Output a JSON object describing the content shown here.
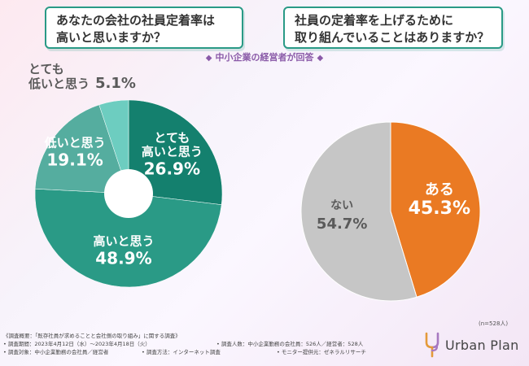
{
  "questions": {
    "left": [
      "あなたの会社の社員定着率は",
      "高いと思いますか？"
    ],
    "right": [
      "社員の定着率を上げるために",
      "取り組んでいることはありますか？"
    ]
  },
  "subtitle": "中小企業の経営者が回答",
  "subtitle_diamond": "◆",
  "sample_note": "(n=528人)",
  "chart_data": [
    {
      "type": "pie",
      "style": "donut",
      "title": "あなたの会社の社員定着率は高いと思いますか？",
      "unit": "%",
      "slices": [
        {
          "label_lines": [
            "とても",
            "高いと思う"
          ],
          "value": 26.9,
          "value_text": "26.9%",
          "color": "#14806e",
          "label_placement": "inside"
        },
        {
          "label_lines": [
            "高いと思う"
          ],
          "value": 48.9,
          "value_text": "48.9%",
          "color": "#2a9a86",
          "label_placement": "inside"
        },
        {
          "label_lines": [
            "低いと思う"
          ],
          "value": 19.1,
          "value_text": "19.1%",
          "color": "#55ad9f",
          "label_placement": "inside"
        },
        {
          "label_lines": [
            "とても",
            "低いと思う"
          ],
          "value": 5.1,
          "value_text": "5.1%",
          "color": "#6dcdc0",
          "label_placement": "outside"
        }
      ]
    },
    {
      "type": "pie",
      "title": "社員の定着率を上げるために取り組んでいることはありますか？",
      "unit": "%",
      "slices": [
        {
          "label_lines": [
            "ある"
          ],
          "value": 45.3,
          "value_text": "45.3%",
          "color": "#ea7a23",
          "label_placement": "inside"
        },
        {
          "label_lines": [
            "ない"
          ],
          "value": 54.7,
          "value_text": "54.7%",
          "color": "#c6c6c6",
          "label_placement": "inside"
        }
      ]
    }
  ],
  "footer": {
    "survey_title": "《調査概要：「既存社員が求めることと会社側の取り組み」に関する調査》",
    "period": "• 調査期間：2023年4月12日（水）〜2023年4月18日（火）",
    "count": "• 調査人数：中小企業勤務の会社員：526人／経営者：528人",
    "target": "• 調査対象：中小企業勤務の会社員／経営者",
    "method": "• 調査方法：インターネット調査",
    "monitor": "• モニター提供元：ゼネラルリサーチ"
  },
  "logo": {
    "text": "Urban Plan"
  }
}
